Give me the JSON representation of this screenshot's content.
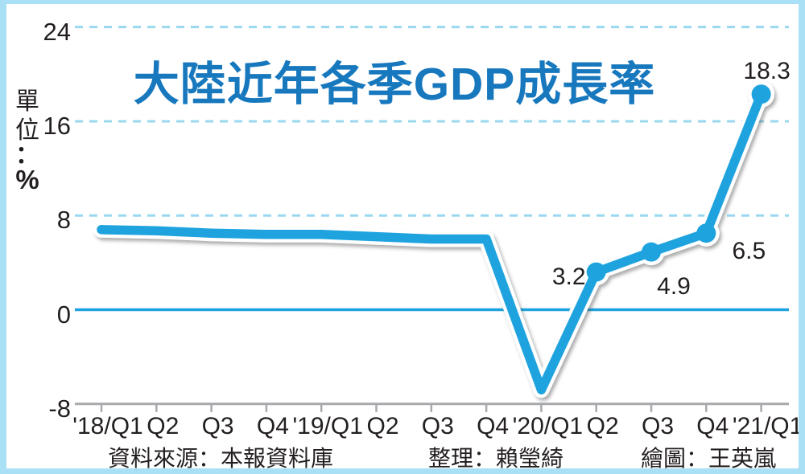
{
  "frame": {
    "border_color": "#A9E0F5",
    "background": "#FFFFFF"
  },
  "title": {
    "text": "大陸近年各季GDP成長率",
    "color": "#1878BE"
  },
  "unit_label": {
    "chars": [
      "單",
      "位",
      "：",
      "%"
    ],
    "full": "單位：%"
  },
  "footer": {
    "source": "資料來源：本報資料庫",
    "compiled_by": "整理：賴瑩綺",
    "drawn_by": "繪圖：王英嵐"
  },
  "chart_data": {
    "type": "line",
    "title": "大陸近年各季GDP成長率",
    "ylabel": "單位：%",
    "categories": [
      "'18/Q1",
      "Q2",
      "Q3",
      "Q4",
      "'19/Q1",
      "Q2",
      "Q3",
      "Q4",
      "'20/Q1",
      "Q2",
      "Q3",
      "Q4",
      "'21/Q1"
    ],
    "values": [
      6.8,
      6.7,
      6.5,
      6.4,
      6.4,
      6.2,
      6.0,
      6.0,
      -6.8,
      3.2,
      4.9,
      6.5,
      18.3
    ],
    "point_labels": [
      {
        "index": 9,
        "text": "3.2",
        "placement": "left"
      },
      {
        "index": 10,
        "text": "4.9",
        "placement": "below"
      },
      {
        "index": 11,
        "text": "6.5",
        "placement": "right"
      },
      {
        "index": 12,
        "text": "18.3",
        "placement": "above"
      }
    ],
    "yticks": [
      24,
      16,
      8,
      0,
      -8
    ],
    "ylim": [
      -8,
      24
    ],
    "grid": "dashed-horizontal",
    "legend": "none",
    "line_color": "#1EA3DF",
    "marker_color": "#1EA3DF",
    "grid_color": "#99D8EF",
    "zero_line_color": "#1EA3DF",
    "axis_color": "#A7A9AC",
    "text_color": "#231F20"
  }
}
